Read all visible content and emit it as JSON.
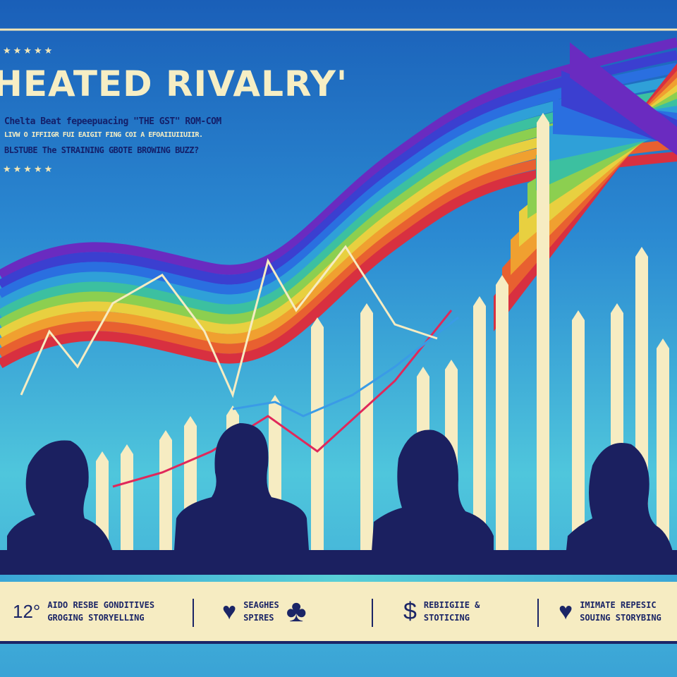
{
  "poster": {
    "title": "HEATED RIVALRY'",
    "subtitle_lines": [
      "Chelta Beat fepeepuacing \"THE GST\" ROM-COM",
      "LIVW O IFFIIGR FUI EAIGIT FING COI A EFOAIIUIIUIIR.",
      "BLSTUBE The STRAINING GBOTE BROWING BUZZ?"
    ],
    "stars": "★★★★★"
  },
  "banner": {
    "items": [
      {
        "icon": "number-icon",
        "glyph": "12°",
        "lines": [
          "AIDO RESBE GONDITIVES",
          "GROGING STORYELLING"
        ]
      },
      {
        "icon": "heart-icon",
        "glyph": "♥",
        "lines": [
          "SEAGHES",
          "SPIRES"
        ],
        "extra_icon": "club-icon",
        "extra_glyph": "♣"
      },
      {
        "icon": "dollar-icon",
        "glyph": "$",
        "lines": [
          "REBIIGIIE &",
          "STOTICING"
        ]
      },
      {
        "icon": "heart-icon",
        "glyph": "♥",
        "lines": [
          "IMIMATE REPESIC",
          "SOUING STORYBING"
        ]
      }
    ]
  },
  "colors": {
    "navy": "#1b2566",
    "cream": "#f6ecc2",
    "sky": "#2a7fcf",
    "cyan": "#4cc7dc"
  }
}
